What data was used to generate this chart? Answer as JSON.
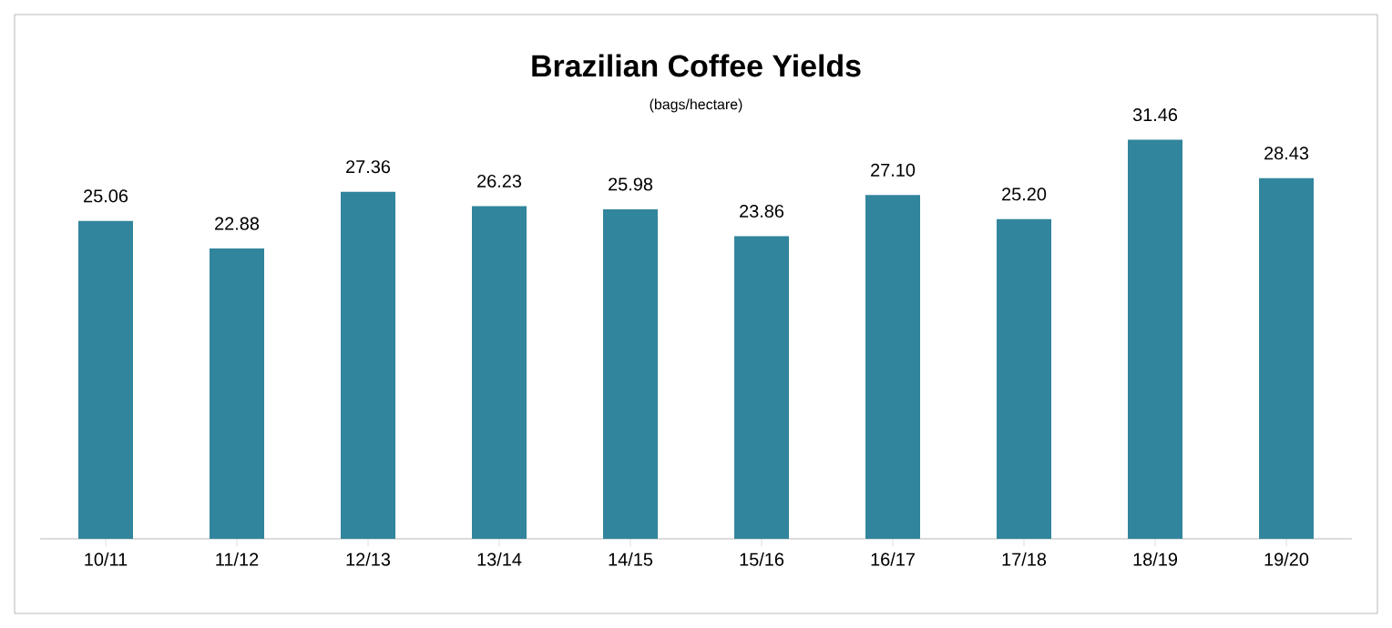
{
  "chart_data": {
    "type": "bar",
    "title": "Brazilian Coffee Yields",
    "subtitle": "(bags/hectare)",
    "categories": [
      "10/11",
      "11/12",
      "12/13",
      "13/14",
      "14/15",
      "15/16",
      "16/17",
      "17/18",
      "18/19",
      "19/20"
    ],
    "values": [
      25.06,
      22.88,
      27.36,
      26.23,
      25.98,
      23.86,
      27.1,
      25.2,
      31.46,
      28.43
    ],
    "value_labels": [
      "25.06",
      "22.88",
      "27.36",
      "26.23",
      "25.98",
      "23.86",
      "27.10",
      "25.20",
      "31.46",
      "28.43"
    ],
    "color": "#31859c",
    "tick_labels": "x"
  }
}
